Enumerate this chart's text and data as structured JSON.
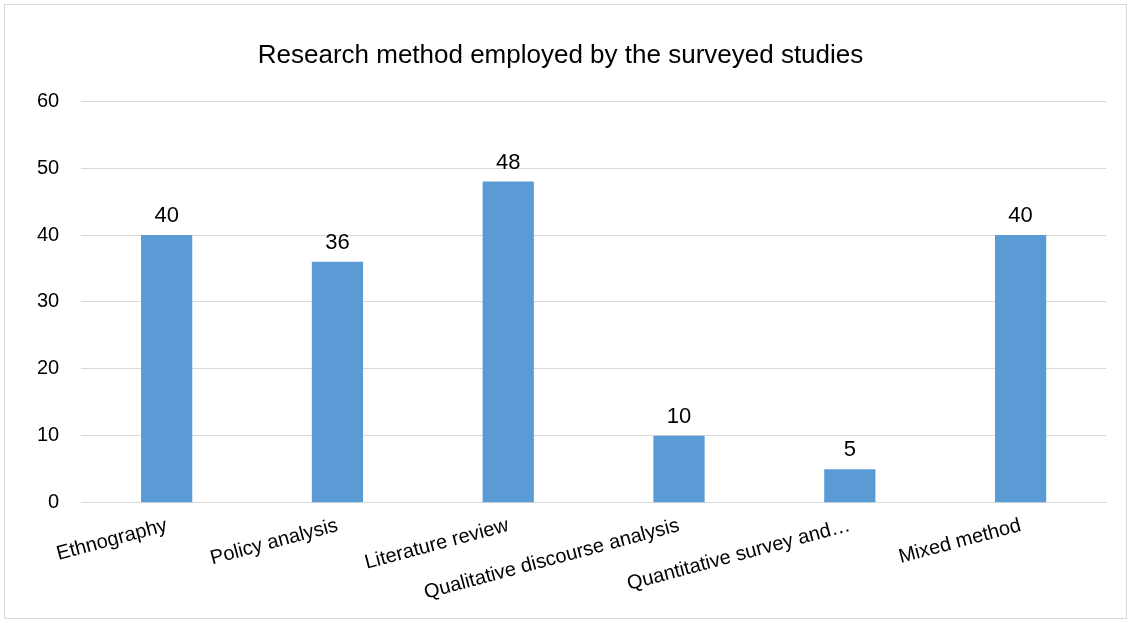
{
  "chart_data": {
    "type": "bar",
    "title": "Research method employed by the surveyed studies",
    "categories": [
      "Ethnography",
      "Policy analysis",
      "Literature review",
      "Qualitative discourse analysis",
      "Quantitative survey and…",
      "Mixed method"
    ],
    "values": [
      40,
      36,
      48,
      10,
      5,
      40
    ],
    "color": "#5b9bd5",
    "ylim": [
      0,
      60
    ],
    "yticks": [
      0,
      10,
      20,
      30,
      40,
      50,
      60
    ],
    "grid": "y",
    "legend": false,
    "data_labels": true
  }
}
